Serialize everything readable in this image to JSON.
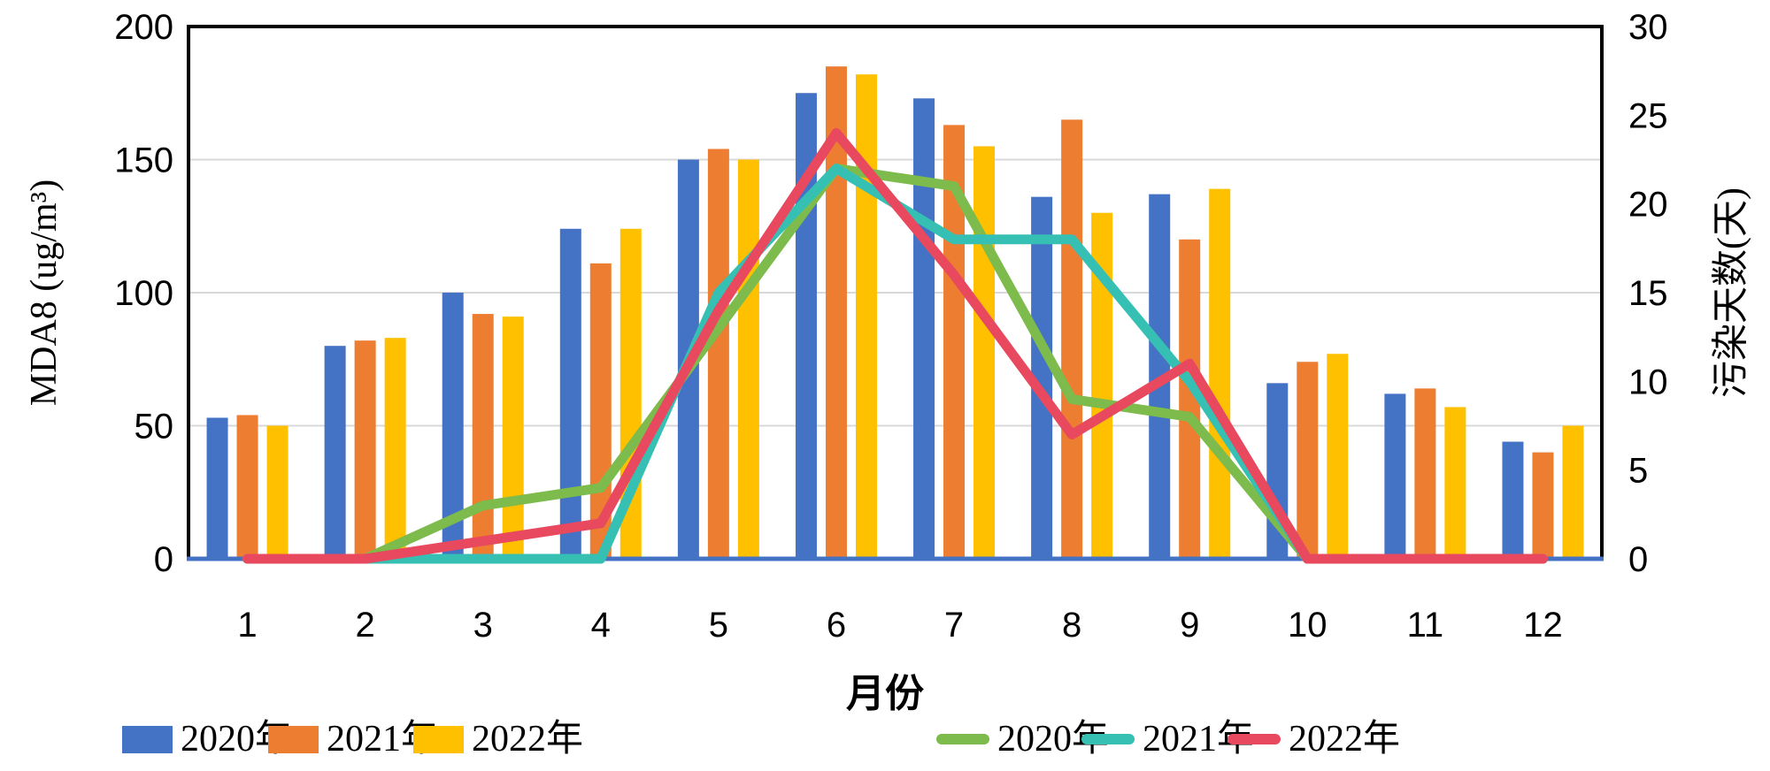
{
  "chart_data": {
    "type": "bar+line",
    "title": "",
    "categories": [
      "1",
      "2",
      "3",
      "4",
      "5",
      "6",
      "7",
      "8",
      "9",
      "10",
      "11",
      "12"
    ],
    "x_axis": {
      "label": "月份"
    },
    "left_axis": {
      "label": "MDA8 (ug/m³)",
      "min": 0,
      "max": 200,
      "step": 50,
      "ticks": [
        0,
        50,
        100,
        150,
        200
      ]
    },
    "right_axis": {
      "label": "污染天数(天)",
      "min": 0,
      "max": 30,
      "step": 5,
      "ticks": [
        0,
        5,
        10,
        15,
        20,
        25,
        30
      ]
    },
    "bar_series": [
      {
        "name": "2020年",
        "color": "#4472C4",
        "axis": "left",
        "values": [
          53,
          80,
          100,
          124,
          150,
          175,
          173,
          136,
          137,
          66,
          62,
          44
        ]
      },
      {
        "name": "2021年",
        "color": "#ED7D31",
        "axis": "left",
        "values": [
          54,
          82,
          92,
          111,
          154,
          185,
          163,
          165,
          120,
          74,
          64,
          40
        ]
      },
      {
        "name": "2022年",
        "color": "#FFC000",
        "axis": "left",
        "values": [
          50,
          83,
          91,
          124,
          150,
          182,
          155,
          130,
          139,
          77,
          57,
          50
        ]
      }
    ],
    "line_series": [
      {
        "name": "2020年",
        "color": "#7CBB4C",
        "axis": "right",
        "values": [
          0,
          0,
          3,
          4,
          13,
          22,
          21,
          9,
          8,
          0,
          0,
          0
        ]
      },
      {
        "name": "2021年",
        "color": "#36C0B3",
        "axis": "right",
        "values": [
          0,
          0,
          0,
          0,
          15,
          22,
          18,
          18,
          10,
          0,
          0,
          0
        ]
      },
      {
        "name": "2022年",
        "color": "#E8495F",
        "axis": "right",
        "values": [
          0,
          0,
          1,
          2,
          14,
          24,
          16,
          7,
          11,
          0,
          0,
          0
        ]
      }
    ],
    "grid": true,
    "legend_position": "bottom"
  },
  "colors": {
    "grid": "#D9D9D9",
    "spine": "#000000",
    "baseline": "#4472C4",
    "text": "#000000",
    "background": "#FFFFFF"
  }
}
